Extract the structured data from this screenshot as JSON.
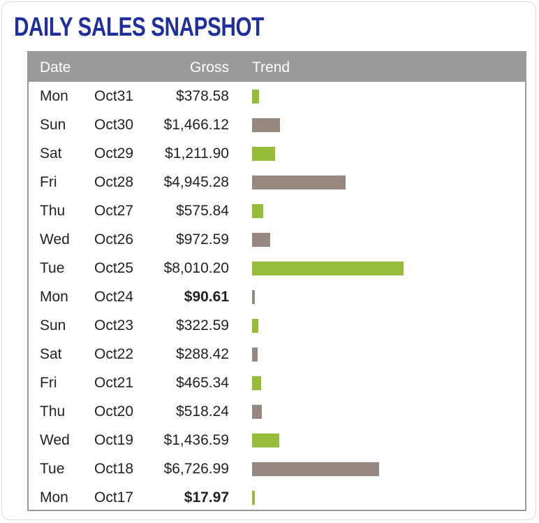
{
  "title": "DAILY SALES SNAPSHOT",
  "headers": {
    "date": "Date",
    "gross": "Gross",
    "trend": "Trend"
  },
  "colors": {
    "title": "#1f2f9c",
    "header_bg": "#9a9a9a",
    "green": "#97bc3a",
    "taupe": "#978880"
  },
  "chart_data": {
    "type": "bar",
    "orientation": "horizontal",
    "categories": [
      "Oct31",
      "Oct30",
      "Oct29",
      "Oct28",
      "Oct27",
      "Oct26",
      "Oct25",
      "Oct24",
      "Oct23",
      "Oct22",
      "Oct21",
      "Oct20",
      "Oct19",
      "Oct18",
      "Oct17"
    ],
    "values": [
      378.58,
      1466.12,
      1211.9,
      4945.28,
      575.84,
      972.59,
      8010.2,
      90.61,
      322.59,
      288.42,
      465.34,
      518.24,
      1436.59,
      6726.99,
      17.97
    ],
    "xlim": [
      0,
      8010.2
    ]
  },
  "rows": [
    {
      "day": "Mon",
      "date": "Oct31",
      "gross": "$378.58",
      "value": 378.58,
      "color": "green",
      "bold": false
    },
    {
      "day": "Sun",
      "date": "Oct30",
      "gross": "$1,466.12",
      "value": 1466.12,
      "color": "taupe",
      "bold": false
    },
    {
      "day": "Sat",
      "date": "Oct29",
      "gross": "$1,211.90",
      "value": 1211.9,
      "color": "green",
      "bold": false
    },
    {
      "day": "Fri",
      "date": "Oct28",
      "gross": "$4,945.28",
      "value": 4945.28,
      "color": "taupe",
      "bold": false
    },
    {
      "day": "Thu",
      "date": "Oct27",
      "gross": "$575.84",
      "value": 575.84,
      "color": "green",
      "bold": false
    },
    {
      "day": "Wed",
      "date": "Oct26",
      "gross": "$972.59",
      "value": 972.59,
      "color": "taupe",
      "bold": false
    },
    {
      "day": "Tue",
      "date": "Oct25",
      "gross": "$8,010.20",
      "value": 8010.2,
      "color": "green",
      "bold": false
    },
    {
      "day": "Mon",
      "date": "Oct24",
      "gross": "$90.61",
      "value": 90.61,
      "color": "taupe",
      "bold": true
    },
    {
      "day": "Sun",
      "date": "Oct23",
      "gross": "$322.59",
      "value": 322.59,
      "color": "green",
      "bold": false
    },
    {
      "day": "Sat",
      "date": "Oct22",
      "gross": "$288.42",
      "value": 288.42,
      "color": "taupe",
      "bold": false
    },
    {
      "day": "Fri",
      "date": "Oct21",
      "gross": "$465.34",
      "value": 465.34,
      "color": "green",
      "bold": false
    },
    {
      "day": "Thu",
      "date": "Oct20",
      "gross": "$518.24",
      "value": 518.24,
      "color": "taupe",
      "bold": false
    },
    {
      "day": "Wed",
      "date": "Oct19",
      "gross": "$1,436.59",
      "value": 1436.59,
      "color": "green",
      "bold": false
    },
    {
      "day": "Tue",
      "date": "Oct18",
      "gross": "$6,726.99",
      "value": 6726.99,
      "color": "taupe",
      "bold": false
    },
    {
      "day": "Mon",
      "date": "Oct17",
      "gross": "$17.97",
      "value": 17.97,
      "color": "green",
      "bold": true
    }
  ]
}
